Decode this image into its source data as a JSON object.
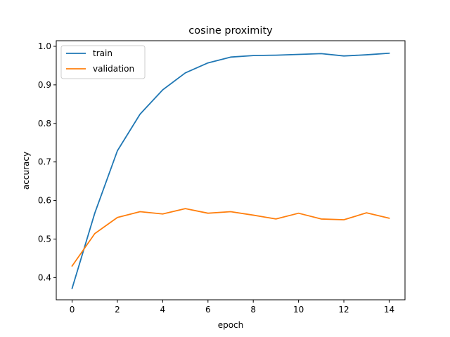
{
  "chart_data": {
    "type": "line",
    "title": "cosine proximity",
    "xlabel": "epoch",
    "ylabel": "accuracy",
    "x": [
      0,
      1,
      2,
      3,
      4,
      5,
      6,
      7,
      8,
      9,
      10,
      11,
      12,
      13,
      14
    ],
    "xlim": [
      -0.7,
      14.7
    ],
    "ylim": [
      0.3424,
      1.0145
    ],
    "xticks": [
      0,
      2,
      4,
      6,
      8,
      10,
      12,
      14
    ],
    "yticks": [
      0.4,
      0.5,
      0.6,
      0.7,
      0.8,
      0.9,
      1.0
    ],
    "ytick_labels": [
      "0.4",
      "0.5",
      "0.6",
      "0.7",
      "0.8",
      "0.9",
      "1.0"
    ],
    "legend_position": "upper-left",
    "grid": false,
    "series": [
      {
        "name": "train",
        "color": "#1f77b4",
        "values": [
          0.372,
          0.567,
          0.729,
          0.824,
          0.887,
          0.931,
          0.957,
          0.972,
          0.976,
          0.977,
          0.979,
          0.981,
          0.975,
          0.978,
          0.982
        ]
      },
      {
        "name": "validation",
        "color": "#ff7f0e",
        "values": [
          0.43,
          0.514,
          0.556,
          0.571,
          0.565,
          0.579,
          0.567,
          0.571,
          0.562,
          0.552,
          0.567,
          0.552,
          0.55,
          0.568,
          0.554
        ]
      }
    ]
  }
}
